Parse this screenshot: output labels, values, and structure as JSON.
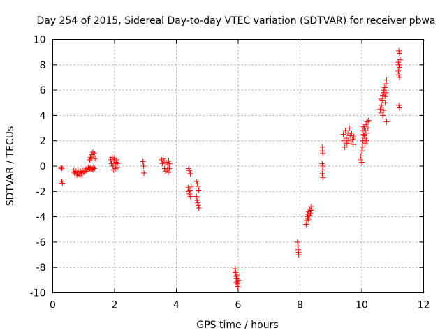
{
  "chart_data": {
    "type": "scatter",
    "title": "Day 254 of 2015, Sidereal Day-to-day VTEC variation (SDTVAR) for receiver pbwa",
    "xlabel": "GPS time / hours",
    "ylabel": "SDTVAR / TECUs",
    "xlim": [
      0,
      12
    ],
    "ylim": [
      -10,
      10
    ],
    "xticks": [
      "0",
      "2",
      "4",
      "6",
      "8",
      "10",
      "12"
    ],
    "yticks": [
      "-10",
      "-8",
      "-6",
      "-4",
      "-2",
      "0",
      "2",
      "4",
      "6",
      "8",
      "10"
    ],
    "grid": true,
    "marker": "+",
    "color": "#ff0000",
    "series": [
      {
        "name": "pbwa",
        "points": [
          [
            0.27,
            -0.1
          ],
          [
            0.28,
            -0.2
          ],
          [
            0.3,
            -0.15
          ],
          [
            0.29,
            -1.2
          ],
          [
            0.31,
            -1.35
          ],
          [
            0.68,
            -0.3
          ],
          [
            0.7,
            -0.5
          ],
          [
            0.72,
            -0.6
          ],
          [
            0.75,
            -0.4
          ],
          [
            0.78,
            -0.7
          ],
          [
            0.8,
            -0.5
          ],
          [
            0.82,
            -0.3
          ],
          [
            0.85,
            -0.6
          ],
          [
            0.88,
            -0.75
          ],
          [
            0.9,
            -0.4
          ],
          [
            0.93,
            -0.5
          ],
          [
            0.95,
            -0.6
          ],
          [
            0.98,
            -0.3
          ],
          [
            1.0,
            -0.5
          ],
          [
            1.03,
            -0.45
          ],
          [
            1.05,
            -0.3
          ],
          [
            1.08,
            -0.4
          ],
          [
            1.1,
            -0.2
          ],
          [
            1.12,
            -0.3
          ],
          [
            1.15,
            -0.1
          ],
          [
            1.18,
            -0.25
          ],
          [
            1.2,
            -0.2
          ],
          [
            1.22,
            -0.15
          ],
          [
            1.25,
            -0.25
          ],
          [
            1.28,
            -0.2
          ],
          [
            1.3,
            -0.3
          ],
          [
            1.32,
            -0.1
          ],
          [
            1.35,
            -0.2
          ],
          [
            1.2,
            0.5
          ],
          [
            1.22,
            0.7
          ],
          [
            1.25,
            0.6
          ],
          [
            1.27,
            0.9
          ],
          [
            1.3,
            1.1
          ],
          [
            1.32,
            0.8
          ],
          [
            1.35,
            1.0
          ],
          [
            1.37,
            0.6
          ],
          [
            1.88,
            0.5
          ],
          [
            1.9,
            0.2
          ],
          [
            1.92,
            0.7
          ],
          [
            1.95,
            0.0
          ],
          [
            1.97,
            -0.3
          ],
          [
            1.98,
            0.4
          ],
          [
            2.0,
            0.6
          ],
          [
            2.02,
            0.1
          ],
          [
            2.04,
            -0.2
          ],
          [
            2.05,
            0.3
          ],
          [
            2.07,
            0.5
          ],
          [
            2.08,
            -0.1
          ],
          [
            2.09,
            0.2
          ],
          [
            2.92,
            0.35
          ],
          [
            2.94,
            0.0
          ],
          [
            2.95,
            -0.55
          ],
          [
            3.52,
            0.5
          ],
          [
            3.55,
            0.2
          ],
          [
            3.57,
            0.6
          ],
          [
            3.6,
            0.4
          ],
          [
            3.62,
            -0.2
          ],
          [
            3.65,
            -0.4
          ],
          [
            3.67,
            0.3
          ],
          [
            3.7,
            -0.3
          ],
          [
            3.72,
            0.1
          ],
          [
            3.74,
            -0.5
          ],
          [
            3.75,
            0.4
          ],
          [
            3.77,
            -0.2
          ],
          [
            3.78,
            0.2
          ],
          [
            4.4,
            -0.2
          ],
          [
            4.42,
            -0.35
          ],
          [
            4.45,
            -0.6
          ],
          [
            4.38,
            -1.7
          ],
          [
            4.4,
            -2.0
          ],
          [
            4.42,
            -2.2
          ],
          [
            4.44,
            -1.9
          ],
          [
            4.46,
            -2.4
          ],
          [
            4.48,
            -1.6
          ],
          [
            4.66,
            -1.2
          ],
          [
            4.68,
            -1.4
          ],
          [
            4.7,
            -1.6
          ],
          [
            4.72,
            -1.9
          ],
          [
            4.65,
            -2.4
          ],
          [
            4.67,
            -2.7
          ],
          [
            4.69,
            -2.9
          ],
          [
            4.71,
            -3.1
          ],
          [
            4.73,
            -3.3
          ],
          [
            4.7,
            -2.5
          ],
          [
            5.9,
            -8.1
          ],
          [
            5.92,
            -8.4
          ],
          [
            5.93,
            -8.7
          ],
          [
            5.95,
            -8.9
          ],
          [
            5.97,
            -9.1
          ],
          [
            5.98,
            -9.3
          ],
          [
            5.99,
            -9.5
          ],
          [
            5.91,
            -8.3
          ],
          [
            5.96,
            -8.6
          ],
          [
            6.0,
            -9.0
          ],
          [
            5.94,
            -9.2
          ],
          [
            7.92,
            -6.0
          ],
          [
            7.93,
            -6.3
          ],
          [
            7.94,
            -6.6
          ],
          [
            7.95,
            -6.8
          ],
          [
            7.96,
            -7.0
          ],
          [
            8.2,
            -4.6
          ],
          [
            8.22,
            -4.3
          ],
          [
            8.24,
            -4.0
          ],
          [
            8.25,
            -3.8
          ],
          [
            8.27,
            -4.2
          ],
          [
            8.28,
            -3.6
          ],
          [
            8.3,
            -3.9
          ],
          [
            8.32,
            -3.4
          ],
          [
            8.34,
            -3.7
          ],
          [
            8.35,
            -3.5
          ],
          [
            8.37,
            -3.2
          ],
          [
            8.22,
            -4.5
          ],
          [
            8.26,
            -4.1
          ],
          [
            8.72,
            1.5
          ],
          [
            8.73,
            1.2
          ],
          [
            8.74,
            1.0
          ],
          [
            8.72,
            0.2
          ],
          [
            8.74,
            0.0
          ],
          [
            8.73,
            -0.3
          ],
          [
            8.72,
            -0.6
          ],
          [
            8.74,
            -0.9
          ],
          [
            9.4,
            2.5
          ],
          [
            9.42,
            2.0
          ],
          [
            9.45,
            1.5
          ],
          [
            9.47,
            2.8
          ],
          [
            9.5,
            2.2
          ],
          [
            9.52,
            1.8
          ],
          [
            9.55,
            2.6
          ],
          [
            9.57,
            2.0
          ],
          [
            9.6,
            3.0
          ],
          [
            9.62,
            2.4
          ],
          [
            9.65,
            1.9
          ],
          [
            9.67,
            2.6
          ],
          [
            9.7,
            2.1
          ],
          [
            9.72,
            1.7
          ],
          [
            9.74,
            2.3
          ],
          [
            9.95,
            0.5
          ],
          [
            9.97,
            0.8
          ],
          [
            10.0,
            1.2
          ],
          [
            10.02,
            1.5
          ],
          [
            10.04,
            2.0
          ],
          [
            10.06,
            2.5
          ],
          [
            10.08,
            3.0
          ],
          [
            10.1,
            2.2
          ],
          [
            10.12,
            2.8
          ],
          [
            10.14,
            3.3
          ],
          [
            10.16,
            2.6
          ],
          [
            10.18,
            3.5
          ],
          [
            10.2,
            3.0
          ],
          [
            10.22,
            3.6
          ],
          [
            10.02,
            2.8
          ],
          [
            10.05,
            3.1
          ],
          [
            10.08,
            2.4
          ],
          [
            10.1,
            1.8
          ],
          [
            10.15,
            2.0
          ],
          [
            10.0,
            0.3
          ],
          [
            10.6,
            4.5
          ],
          [
            10.62,
            4.2
          ],
          [
            10.64,
            4.8
          ],
          [
            10.66,
            5.2
          ],
          [
            10.68,
            5.6
          ],
          [
            10.7,
            4.4
          ],
          [
            10.72,
            5.8
          ],
          [
            10.74,
            6.2
          ],
          [
            10.76,
            5.0
          ],
          [
            10.78,
            6.5
          ],
          [
            10.8,
            6.8
          ],
          [
            10.8,
            3.5
          ],
          [
            10.62,
            5.3
          ],
          [
            10.68,
            4.0
          ],
          [
            10.72,
            6.0
          ],
          [
            10.75,
            5.5
          ],
          [
            10.78,
            5.8
          ],
          [
            11.2,
            9.1
          ],
          [
            11.22,
            8.9
          ],
          [
            11.18,
            8.2
          ],
          [
            11.2,
            8.0
          ],
          [
            11.22,
            7.8
          ],
          [
            11.24,
            8.4
          ],
          [
            11.18,
            7.5
          ],
          [
            11.2,
            7.2
          ],
          [
            11.22,
            7.0
          ],
          [
            11.2,
            4.8
          ],
          [
            11.22,
            4.6
          ]
        ]
      }
    ]
  }
}
